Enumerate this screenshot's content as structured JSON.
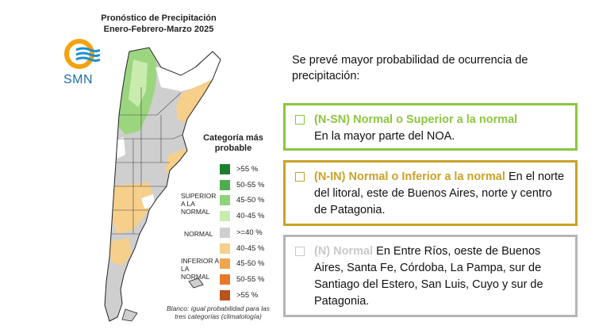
{
  "map": {
    "title_line1": "Pronóstico de Precipitación",
    "title_line2": "Enero-Febrero-Marzo 2025",
    "logo_text": "SMN",
    "legend": {
      "title": "Categoría más probable",
      "groups": {
        "superior": "SUPERIOR A LA NORMAL",
        "normal": "NORMAL",
        "inferior": "INFERIOR A LA NORMAL"
      },
      "items": [
        {
          "range": ">55 %",
          "color": "#1a7f2e"
        },
        {
          "range": "50-55 %",
          "color": "#4cae4f"
        },
        {
          "range": "45-50 %",
          "color": "#8fd27a"
        },
        {
          "range": "40-45 %",
          "color": "#c9ecae"
        },
        {
          "range": ">=40 %",
          "color": "#cfcfcf"
        },
        {
          "range": "40-45 %",
          "color": "#f6cf8b"
        },
        {
          "range": "45-50 %",
          "color": "#f0a64e"
        },
        {
          "range": "50-55 %",
          "color": "#e8792a"
        },
        {
          "range": ">55 %",
          "color": "#b8541c"
        }
      ],
      "note": "Blanco: igual probabilidad para las tres categorías (climatología)"
    },
    "colors": {
      "superior": "#9bd67f",
      "normal": "#cfcfcf",
      "inferior": "#f6cf8b",
      "blank": "#ffffff"
    }
  },
  "panel": {
    "intro": "Se prevé mayor probabilidad de ocurrencia de precipitación:",
    "boxes": [
      {
        "heading": "(N-SN) Normal o Superior a la normal",
        "text": "En la mayor parte del NOA.",
        "heading_color": "#8cc63f",
        "border_color": "#8cc63f"
      },
      {
        "heading": "(N-IN) Normal o Inferior a la normal",
        "text": "En el norte del litoral, este de Buenos Aires, norte y centro de Patagonia.",
        "heading_color": "#c9a227",
        "border_color": "#c9a227"
      },
      {
        "heading": "(N) Normal",
        "text": "En Entre Ríos, oeste de Buenos Aires, Santa Fe, Córdoba, La Pampa, sur de Santiago del Estero, San Luis, Cuyo y sur de Patagonia.",
        "heading_color": "#c8c8c8",
        "border_color": "#b5b5b5"
      }
    ]
  }
}
